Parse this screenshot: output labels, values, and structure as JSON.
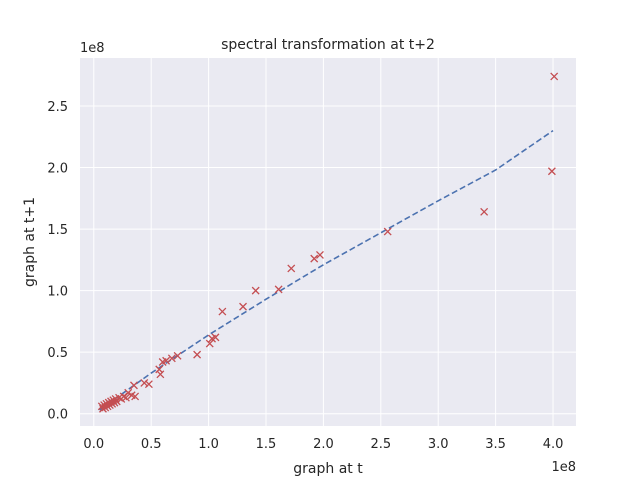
{
  "chart_data": {
    "type": "scatter",
    "title": "spectral transformation at t+2",
    "xlabel": "graph at t",
    "ylabel": "graph at t+1",
    "x_offset_label": "1e8",
    "y_offset_label": "1e8",
    "scale": 100000000,
    "xlim": [
      -0.12,
      4.2
    ],
    "ylim": [
      -0.1,
      2.89
    ],
    "xticks": [
      0.0,
      0.5,
      1.0,
      1.5,
      2.0,
      2.5,
      3.0,
      3.5,
      4.0
    ],
    "yticks": [
      0.0,
      0.5,
      1.0,
      1.5,
      2.0,
      2.5
    ],
    "xtick_labels": [
      "0.0",
      "0.5",
      "1.0",
      "1.5",
      "2.0",
      "2.5",
      "3.0",
      "3.5",
      "4.0"
    ],
    "ytick_labels": [
      "0.0",
      "0.5",
      "1.0",
      "1.5",
      "2.0",
      "2.5"
    ],
    "grid": true,
    "background_color": "#eaeaf2",
    "grid_color": "#ffffff",
    "marker_color": "#c44e52",
    "line_color": "#4c72b0",
    "points": {
      "marker": "x",
      "x": [
        0.07,
        0.08,
        0.09,
        0.1,
        0.11,
        0.12,
        0.13,
        0.14,
        0.15,
        0.16,
        0.17,
        0.18,
        0.19,
        0.2,
        0.22,
        0.24,
        0.26,
        0.28,
        0.3,
        0.33,
        0.35,
        0.36,
        0.44,
        0.48,
        0.57,
        0.58,
        0.6,
        0.63,
        0.68,
        0.73,
        0.9,
        1.01,
        1.03,
        1.06,
        1.12,
        1.3,
        1.41,
        1.61,
        1.72,
        1.92,
        1.97,
        2.56,
        3.4,
        3.99,
        4.01
      ],
      "y": [
        0.06,
        0.04,
        0.07,
        0.05,
        0.08,
        0.06,
        0.09,
        0.07,
        0.1,
        0.08,
        0.11,
        0.09,
        0.12,
        0.1,
        0.13,
        0.12,
        0.14,
        0.13,
        0.17,
        0.15,
        0.23,
        0.14,
        0.25,
        0.24,
        0.36,
        0.32,
        0.42,
        0.43,
        0.45,
        0.47,
        0.48,
        0.57,
        0.61,
        0.62,
        0.83,
        0.87,
        1.0,
        1.01,
        1.18,
        1.26,
        1.29,
        1.48,
        1.64,
        1.97,
        2.74
      ]
    },
    "fit_line": {
      "style": "dashed",
      "x": [
        0.05,
        0.5,
        1.0,
        1.5,
        2.0,
        2.5,
        3.0,
        3.5,
        4.0
      ],
      "y": [
        0.03,
        0.33,
        0.64,
        0.93,
        1.21,
        1.47,
        1.73,
        1.98,
        2.3
      ]
    }
  }
}
